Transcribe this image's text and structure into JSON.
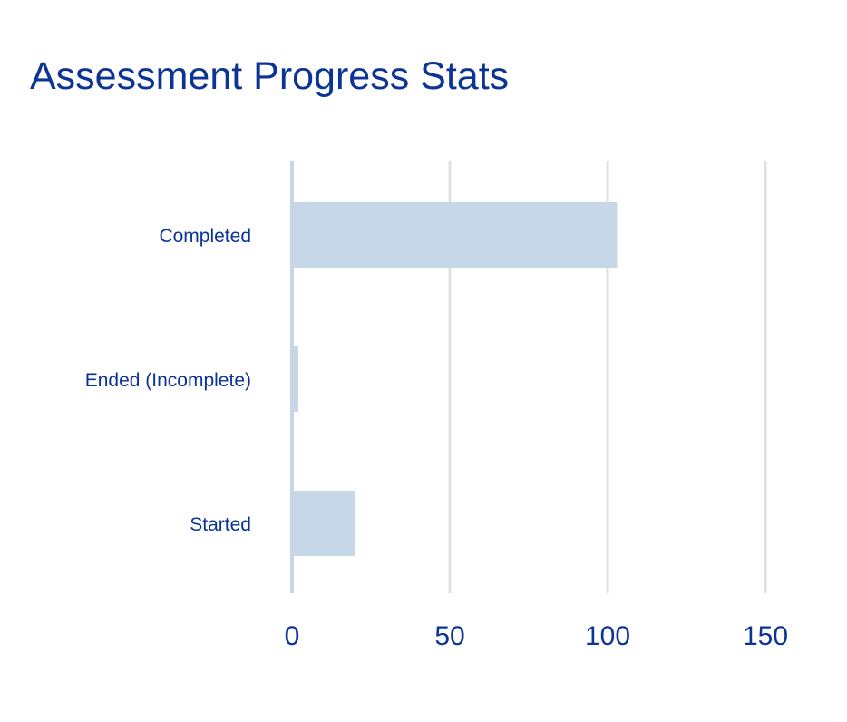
{
  "colors": {
    "title": "#0b3495",
    "text": "#0b3495",
    "bar": "#c6d8e8",
    "grid": "#e0e0e0",
    "zero_line": "#c6d8e8"
  },
  "chart_data": {
    "type": "bar",
    "orientation": "horizontal",
    "title": "Assessment Progress Stats",
    "xlabel": "",
    "ylabel": "",
    "categories": [
      "Completed",
      "Ended (Incomplete)",
      "Started"
    ],
    "values": [
      103,
      2,
      20
    ],
    "xlim": [
      0,
      150
    ],
    "xticks": [
      0,
      50,
      100,
      150
    ],
    "grid": "vertical",
    "legend": "none"
  }
}
